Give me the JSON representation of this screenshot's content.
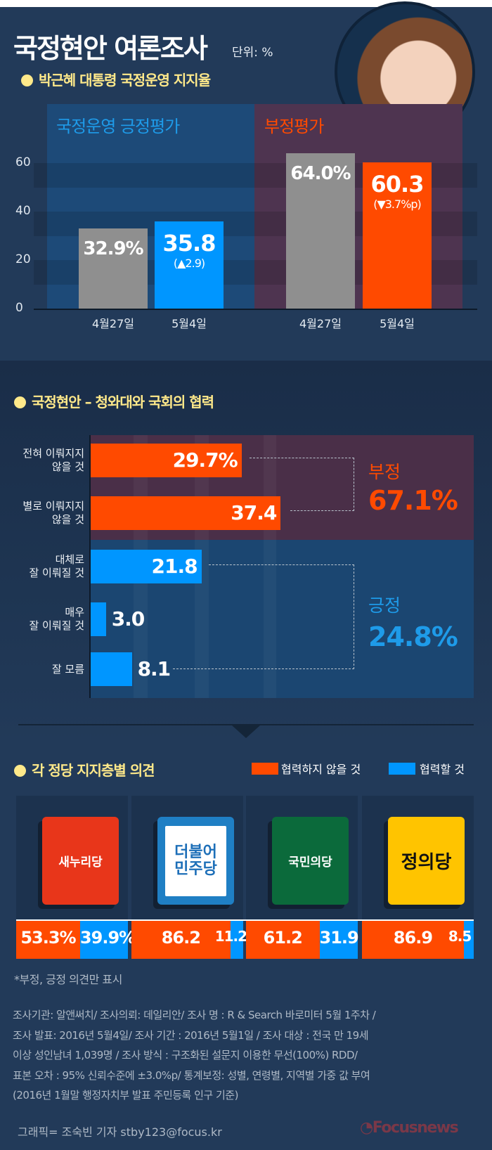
{
  "header": {
    "title": "국정현안 여론조사",
    "unit": "단위: %"
  },
  "colors": {
    "negative": "#ff4a00",
    "positive": "#0096ff",
    "previous": "#8f8f8f",
    "subtitle": "#ffe98a",
    "background": "#223a59"
  },
  "chart_data": [
    {
      "type": "bar",
      "title": "박근혜 대통령 국정운영 지지율",
      "ylim": [
        0,
        70
      ],
      "yticks": [
        0,
        20,
        40,
        60
      ],
      "grid": true,
      "groups": [
        {
          "label": "국정운영 긍정평가",
          "categories": [
            "4월27일",
            "5월4일"
          ],
          "values": [
            32.9,
            35.8
          ],
          "value_labels": [
            "32.9%",
            "35.8"
          ],
          "change": "(▲2.9)"
        },
        {
          "label": "부정평가",
          "categories": [
            "4월27일",
            "5월4일"
          ],
          "values": [
            64.0,
            60.3
          ],
          "value_labels": [
            "64.0%",
            "60.3"
          ],
          "change": "(▼3.7%p)"
        }
      ]
    },
    {
      "type": "bar",
      "orientation": "horizontal",
      "title": "국정현안 – 청와대와 국회의 협력",
      "categories": [
        "전혀 이뤄지지 않을 것",
        "별로 이뤄지지 않을 것",
        "대체로 잘 이뤄질 것",
        "매우 잘 이뤄질 것",
        "잘 모름"
      ],
      "category_lines": [
        [
          "전혀 이뤄지지",
          "않을 것"
        ],
        [
          "별로 이뤄지지",
          "않을 것"
        ],
        [
          "대체로",
          "잘 이뤄질 것"
        ],
        [
          "매우",
          "잘 이뤄질 것"
        ],
        [
          "잘 모름"
        ]
      ],
      "values": [
        29.7,
        37.4,
        21.8,
        3.0,
        8.1
      ],
      "value_labels": [
        "29.7%",
        "37.4",
        "21.8",
        "3.0",
        "8.1"
      ],
      "series_kind": [
        "negative",
        "negative",
        "positive",
        "positive",
        "positive"
      ],
      "summaries": [
        {
          "label": "부정",
          "value": "67.1%"
        },
        {
          "label": "긍정",
          "value": "24.8%"
        }
      ]
    },
    {
      "type": "bar",
      "stacked": true,
      "title": "각 정당 지지층별 의견",
      "legend": [
        "협력하지 않을 것",
        "협력할 것"
      ],
      "legend_placement": "top-right",
      "categories": [
        "새누리당",
        "더불어민주당",
        "국민의당",
        "정의당"
      ],
      "series": [
        {
          "name": "협력하지 않을 것",
          "values": [
            53.3,
            86.2,
            61.2,
            86.9
          ],
          "labels": [
            "53.3%",
            "86.2",
            "61.2",
            "86.9"
          ]
        },
        {
          "name": "협력할 것",
          "values": [
            39.9,
            11.2,
            31.9,
            8.5
          ],
          "labels": [
            "39.9%",
            "11.2",
            "31.9",
            "8.5"
          ]
        }
      ]
    }
  ],
  "logos": [
    {
      "name": "새누리당",
      "text": "새누리당"
    },
    {
      "name": "더불어민주당",
      "text": "더불어\n민주당"
    },
    {
      "name": "국민의당",
      "text": "국민의당"
    },
    {
      "name": "정의당",
      "text": "정의당"
    }
  ],
  "footnote": "*부정, 긍정 의견만 표시",
  "methodology": [
    "조사기관: 알앤써치/ 조사의뢰: 데일리안/ 조사 명 : R & Search 바로미터 5월 1주차 /",
    "조사 발표: 2016년 5월4일/ 조사 기간 : 2016년 5월1일 / 조사 대상 : 전국 만 19세",
    "이상 성인남녀 1,039명 / 조사 방식 : 구조화된 설문지 이용한 무선(100%) RDD/",
    "표본 오차 : 95% 신뢰수준에 ±3.0%p/ 통계보정: 성별, 연령별, 지역별 가중 값 부여",
    "(2016년 1월말 행정자치부 발표 주민등록 인구 기준)"
  ],
  "credit": "그래픽= 조숙빈 기자 stby123@focus.kr",
  "brand": "Focusnews"
}
